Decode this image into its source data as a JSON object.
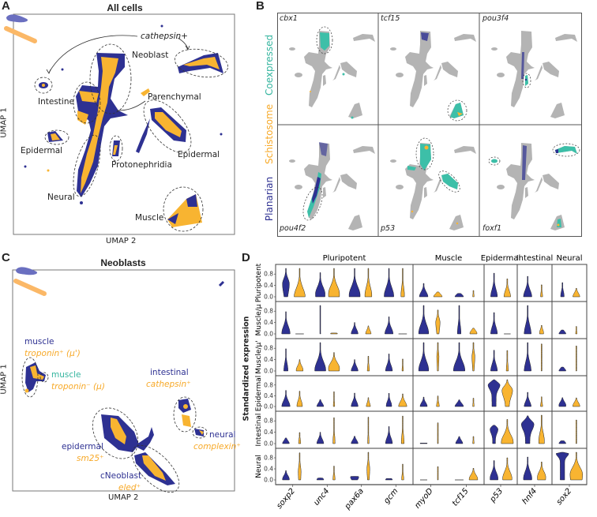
{
  "colors": {
    "planarian": "#2e3192",
    "schistosome": "#f8b431",
    "coexpressed": "#3dbfa8",
    "not_expressed": "#b4b4b4"
  },
  "panels": {
    "A": {
      "letter": "A",
      "title": "All cells",
      "xlabel": "UMAP 2",
      "ylabel": "UMAP 1",
      "annotation": "cathepsin+",
      "clusters": [
        "Neoblast",
        "Intestine",
        "Parenchymal",
        "Epidermal",
        "Epidermal",
        "Protonephridia",
        "Neural",
        "Muscle"
      ]
    },
    "B": {
      "letter": "B",
      "legend": [
        "Coexpressed",
        "Schistosome",
        "Planarian"
      ],
      "genes": [
        "cbx1",
        "tcf15",
        "pou3f4",
        "pou4f2",
        "p53",
        "foxf1"
      ]
    },
    "C": {
      "letter": "C",
      "title": "Neoblasts",
      "xlabel": "UMAP 2",
      "ylabel": "UMAP 1",
      "clusters": [
        {
          "planarian": "muscle",
          "schistosome": "troponin⁺ (μ')"
        },
        {
          "coexpressed": "muscle",
          "schistosome": "troponin⁻ (μ)"
        },
        {
          "planarian": "intestinal",
          "schistosome": "cathepsin⁺"
        },
        {
          "planarian": "neural",
          "schistosome": "complexin⁺"
        },
        {
          "planarian": "epidermal",
          "schistosome": "sm25⁺"
        },
        {
          "planarian": "cNeoblast",
          "schistosome": "eled⁺"
        }
      ]
    },
    "D": {
      "letter": "D"
    }
  },
  "chart_data": [
    {
      "panel": "A",
      "type": "scatter",
      "title": "All cells",
      "xlabel": "UMAP 2",
      "ylabel": "UMAP 1",
      "series": [
        {
          "name": "Planarian",
          "color": "#2e3192"
        },
        {
          "name": "Schistosome",
          "color": "#f8b431"
        }
      ]
    },
    {
      "panel": "B",
      "type": "scatter",
      "grid": "2x3",
      "legend": [
        "Coexpressed",
        "Schistosome",
        "Planarian"
      ],
      "genes": [
        "cbx1",
        "tcf15",
        "pou3f4",
        "pou4f2",
        "p53",
        "foxf1"
      ]
    },
    {
      "panel": "C",
      "type": "scatter",
      "title": "Neoblasts",
      "xlabel": "UMAP 2",
      "ylabel": "UMAP 1"
    },
    {
      "panel": "D",
      "type": "violin",
      "ylabel": "Standardized expression",
      "yticks": [
        "0.0",
        "0.4",
        "0.8"
      ],
      "ylim": [
        0,
        1
      ],
      "groups": [
        {
          "label": "Pluripotent",
          "genes": 4
        },
        {
          "label": "Muscle",
          "genes": 2
        },
        {
          "label": "Epidermal",
          "genes": 1
        },
        {
          "label": "Intestinal",
          "genes": 1
        },
        {
          "label": "Neural",
          "genes": 1
        }
      ],
      "genes": [
        "soxp2",
        "unc4",
        "pax6a",
        "gcm",
        "myoD",
        "tcf15",
        "p53",
        "hnf4",
        "sox2"
      ],
      "rows": [
        "Pluripotent",
        "Muscle/μ",
        "Muscle/μ'",
        "Epidermal",
        "Intestinal",
        "Neural"
      ],
      "value_format": "[max, mode, relative_width]",
      "planarian": [
        [
          [
            1.0,
            0.45,
            0.5
          ],
          [
            0.85,
            0.1,
            0.7
          ],
          [
            1.0,
            0.05,
            0.8
          ],
          [
            1.0,
            0.02,
            0.7
          ],
          [
            0.47,
            0,
            0.6
          ],
          [
            0.12,
            0,
            0.6
          ],
          [
            0.83,
            0,
            0.5
          ],
          [
            0.72,
            0,
            0.6
          ],
          [
            0.5,
            0.02,
            0.25
          ]
        ],
        [
          [
            0.78,
            0.02,
            0.6
          ],
          [
            1.0,
            0,
            0.05
          ],
          [
            0.4,
            0,
            0.5
          ],
          [
            0.6,
            0,
            0.6
          ],
          [
            1.0,
            0.02,
            0.7
          ],
          [
            1.0,
            0.03,
            0.25
          ],
          [
            0.75,
            0,
            0.5
          ],
          [
            1.0,
            0,
            0.5
          ],
          [
            0.14,
            0,
            0.5
          ]
        ],
        [
          [
            0.78,
            0.03,
            0.3
          ],
          [
            1.0,
            0.03,
            0.8
          ],
          [
            0.4,
            0,
            0.5
          ],
          [
            0.6,
            0,
            0.5
          ],
          [
            1.0,
            0.03,
            0.7
          ],
          [
            1.0,
            0.03,
            0.8
          ],
          [
            0.73,
            0,
            0.5
          ],
          [
            1.0,
            0,
            0.5
          ],
          [
            0.14,
            0,
            0.5
          ]
        ],
        [
          [
            0.6,
            0,
            0.6
          ],
          [
            0.26,
            0,
            0.5
          ],
          [
            0.5,
            0,
            0.5
          ],
          [
            0.49,
            0.02,
            0.4
          ],
          [
            0.35,
            0,
            0.5
          ],
          [
            0.25,
            0,
            0.6
          ],
          [
            1.0,
            0.8,
            0.9
          ],
          [
            0.53,
            0,
            0.5
          ],
          [
            0.33,
            0.05,
            0.5
          ]
        ],
        [
          [
            0.2,
            0,
            0.5
          ],
          [
            0.4,
            0,
            0.5
          ],
          [
            0.26,
            0,
            0.5
          ],
          [
            0.6,
            0,
            0.5
          ],
          [
            0.02,
            0,
            0.5
          ],
          [
            0.25,
            0,
            0.5
          ],
          [
            0.65,
            0.5,
            0.6
          ],
          [
            0.98,
            0.68,
            0.9
          ],
          [
            0.1,
            0,
            0.5
          ]
        ],
        [
          [
            0.34,
            0.02,
            0.5
          ],
          [
            0.07,
            0.01,
            0.5
          ],
          [
            0.13,
            0.1,
            0.6
          ],
          [
            0.05,
            0,
            0.5
          ],
          [
            0,
            0,
            0.5
          ],
          [
            0,
            0,
            0.6
          ],
          [
            0.7,
            0.05,
            0.6
          ],
          [
            0.83,
            0.05,
            0.6
          ],
          [
            1.0,
            0.95,
            0.9
          ]
        ]
      ],
      "schistosome": [
        [
          [
            1.0,
            0.0,
            0.8
          ],
          [
            1.0,
            0.1,
            0.8
          ],
          [
            1.0,
            0.05,
            0.5
          ],
          [
            1.0,
            0.05,
            0.25
          ],
          [
            0.17,
            0,
            0.6
          ],
          [
            0.22,
            0,
            0.1
          ],
          [
            0.63,
            0,
            0.5
          ],
          [
            0.42,
            0,
            0.15
          ],
          [
            0.3,
            0,
            0.5
          ]
        ],
        [
          [
            0,
            0,
            0.6
          ],
          [
            0.03,
            0,
            0.5
          ],
          [
            0.28,
            0,
            0.4
          ],
          [
            0,
            0,
            0.6
          ],
          [
            0.84,
            0.4,
            0.3
          ],
          [
            0.2,
            0.02,
            0.5
          ],
          [
            0,
            0,
            0.5
          ],
          [
            0.3,
            0.03,
            0.3
          ],
          [
            0.26,
            0,
            0.1
          ]
        ],
        [
          [
            0.4,
            0.03,
            0.5
          ],
          [
            0.65,
            0.1,
            0.8
          ],
          [
            0.52,
            0.02,
            0.15
          ],
          [
            0.42,
            0.01,
            0.1
          ],
          [
            1.0,
            0.5,
            0.15
          ],
          [
            1.0,
            0.5,
            0.2
          ],
          [
            0.72,
            0.02,
            0.15
          ],
          [
            0.95,
            0,
            0.05
          ],
          [
            0.88,
            0,
            0.05
          ]
        ],
        [
          [
            0.57,
            0.02,
            0.4
          ],
          [
            0.55,
            0,
            0.1
          ],
          [
            0.33,
            0,
            0.3
          ],
          [
            0.47,
            0,
            0.6
          ],
          [
            0.39,
            0,
            0.2
          ],
          [
            0.31,
            0,
            0.1
          ],
          [
            1.0,
            0.6,
            0.8
          ],
          [
            0.36,
            0,
            0.15
          ],
          [
            0.32,
            0.02,
            0.5
          ]
        ],
        [
          [
            0.39,
            0.02,
            0.15
          ],
          [
            0.91,
            0.03,
            0.15
          ],
          [
            0.93,
            0,
            0.1
          ],
          [
            0.97,
            0.03,
            0.2
          ],
          [
            0.73,
            0,
            0.05
          ],
          [
            0.25,
            0,
            0.1
          ],
          [
            0.85,
            0.05,
            0.9
          ],
          [
            1.0,
            0.1,
            0.4
          ],
          [
            0.83,
            0,
            0.05
          ]
        ],
        [
          [
            0.98,
            0.3,
            0.2
          ],
          [
            0.5,
            0.02,
            0.15
          ],
          [
            1.0,
            0.4,
            0.2
          ],
          [
            0.57,
            0.02,
            0.15
          ],
          [
            0.48,
            0,
            0.05
          ],
          [
            0.42,
            0.03,
            0.6
          ],
          [
            0.8,
            0.05,
            0.7
          ],
          [
            0.65,
            0.1,
            0.6
          ],
          [
            1.0,
            0.2,
            0.9
          ]
        ]
      ]
    }
  ]
}
